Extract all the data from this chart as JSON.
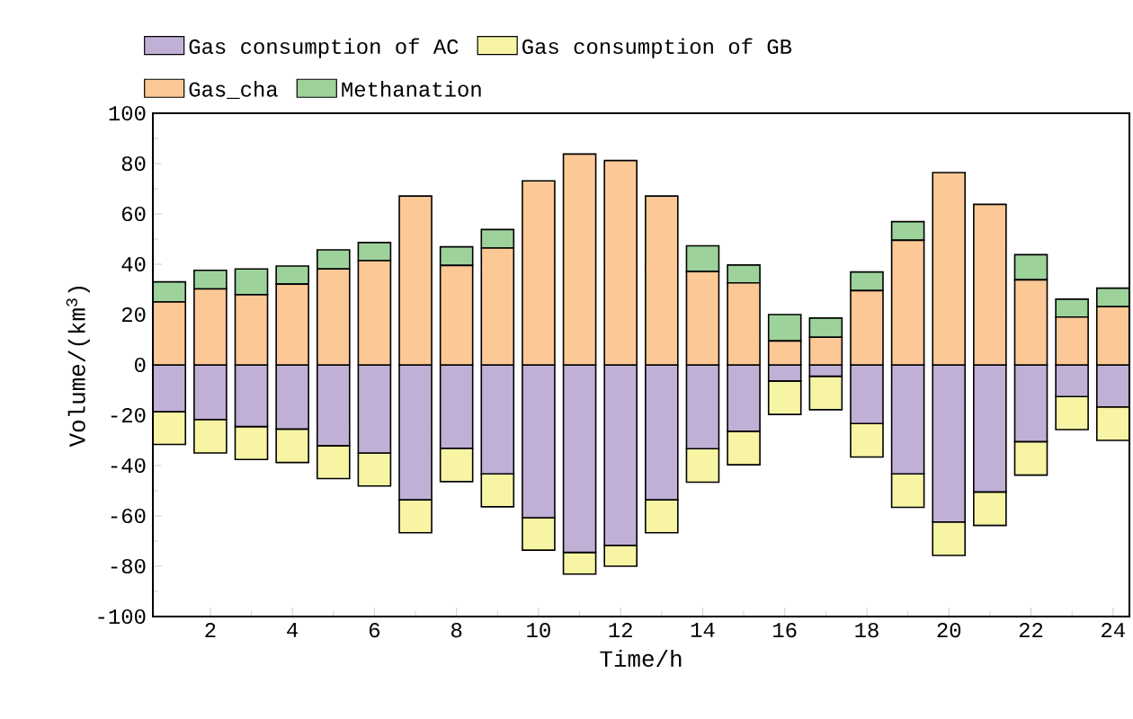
{
  "chart_data": {
    "type": "bar",
    "stacked": true,
    "xlabel": "Time/h",
    "ylabel": "Volume/(km$^{3}$)",
    "x": [
      1,
      2,
      3,
      4,
      5,
      6,
      7,
      8,
      9,
      10,
      11,
      12,
      13,
      14,
      15,
      16,
      17,
      18,
      19,
      20,
      21,
      22,
      23,
      24
    ],
    "xlim": [
      0.6,
      24.4
    ],
    "xticks": [
      2,
      4,
      6,
      8,
      10,
      12,
      14,
      16,
      18,
      20,
      22,
      24
    ],
    "ylim": [
      -100,
      100
    ],
    "yticks": [
      -100,
      -80,
      -60,
      -40,
      -20,
      0,
      20,
      40,
      60,
      80,
      100
    ],
    "legend": "top",
    "grid": false,
    "series": [
      {
        "name": "Gas consumption of AC",
        "color": "#c1b0d6",
        "values": [
          -18.6,
          -21.7,
          -24.5,
          -25.5,
          -32.1,
          -35,
          -53.6,
          -33.1,
          -43.3,
          -60.7,
          -74.5,
          -71.7,
          -53.6,
          -33.3,
          -26.4,
          -6.4,
          -4.5,
          -23.3,
          -43.3,
          -62.4,
          -50.5,
          -30.5,
          -12.6,
          -16.7
        ]
      },
      {
        "name": "Gas consumption of GB",
        "color": "#f7f4a4",
        "values": [
          -13,
          -13.3,
          -13.1,
          -13.3,
          -13.1,
          -13.1,
          -13.1,
          -13.3,
          -13.1,
          -12.9,
          -8.6,
          -8.3,
          -13.1,
          -13.3,
          -13.3,
          -13.3,
          -13.3,
          -13.3,
          -13.3,
          -13.3,
          -13.3,
          -13.3,
          -13.1,
          -13.3
        ]
      },
      {
        "name": "Gas_cha",
        "color": "#fcc896",
        "values": [
          25,
          30.2,
          27.9,
          32.1,
          38.1,
          41.4,
          67.1,
          39.5,
          46.4,
          73.1,
          83.8,
          81.2,
          67.1,
          37.1,
          32.6,
          9.5,
          11,
          29.5,
          49.5,
          76.4,
          63.8,
          33.8,
          19,
          23.1
        ]
      },
      {
        "name": "Methanation",
        "color": "#9dd39b",
        "values": [
          8,
          7.4,
          10.2,
          7.2,
          7.6,
          7.2,
          0,
          7.4,
          7.4,
          0,
          0,
          0,
          0,
          10.2,
          7.1,
          10.5,
          7.6,
          7.4,
          7.4,
          0,
          0,
          10,
          7.1,
          7.4
        ]
      }
    ]
  }
}
